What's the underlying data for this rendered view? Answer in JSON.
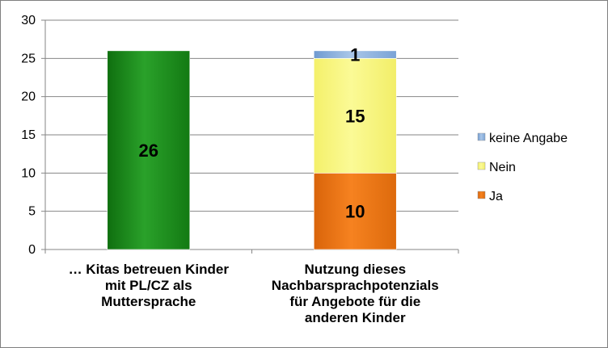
{
  "chart_data": {
    "type": "bar",
    "stacked": true,
    "categories": [
      [
        "… Kitas betreuen Kinder",
        "mit PL/CZ als",
        "Muttersprache"
      ],
      [
        "Nutzung dieses",
        "Nachbarsprachpotenzials",
        "für Angebote für die",
        "anderen Kinder"
      ]
    ],
    "y_ticks": [
      "0",
      "5",
      "10",
      "15",
      "20",
      "25",
      "30"
    ],
    "ylim": [
      0,
      30
    ],
    "grid": true,
    "legend_position": "right",
    "series": [
      {
        "name": "",
        "values": [
          26,
          null
        ],
        "color": "#1e8e1e",
        "labels": [
          "26",
          ""
        ]
      },
      {
        "name": "Ja",
        "values": [
          null,
          10
        ],
        "color": "#ee7514",
        "labels": [
          "",
          "10"
        ]
      },
      {
        "name": "Nein",
        "values": [
          null,
          15
        ],
        "color": "#f7f57a",
        "labels": [
          "",
          "15"
        ]
      },
      {
        "name": "keine Angabe",
        "values": [
          null,
          1
        ],
        "color": "#8fb3dd",
        "labels": [
          "",
          "1"
        ]
      }
    ],
    "legend": [
      {
        "name": "keine Angabe",
        "color": "#8fb3dd"
      },
      {
        "name": "Nein",
        "color": "#f7f57a"
      },
      {
        "name": "Ja",
        "color": "#ee7514"
      }
    ]
  }
}
